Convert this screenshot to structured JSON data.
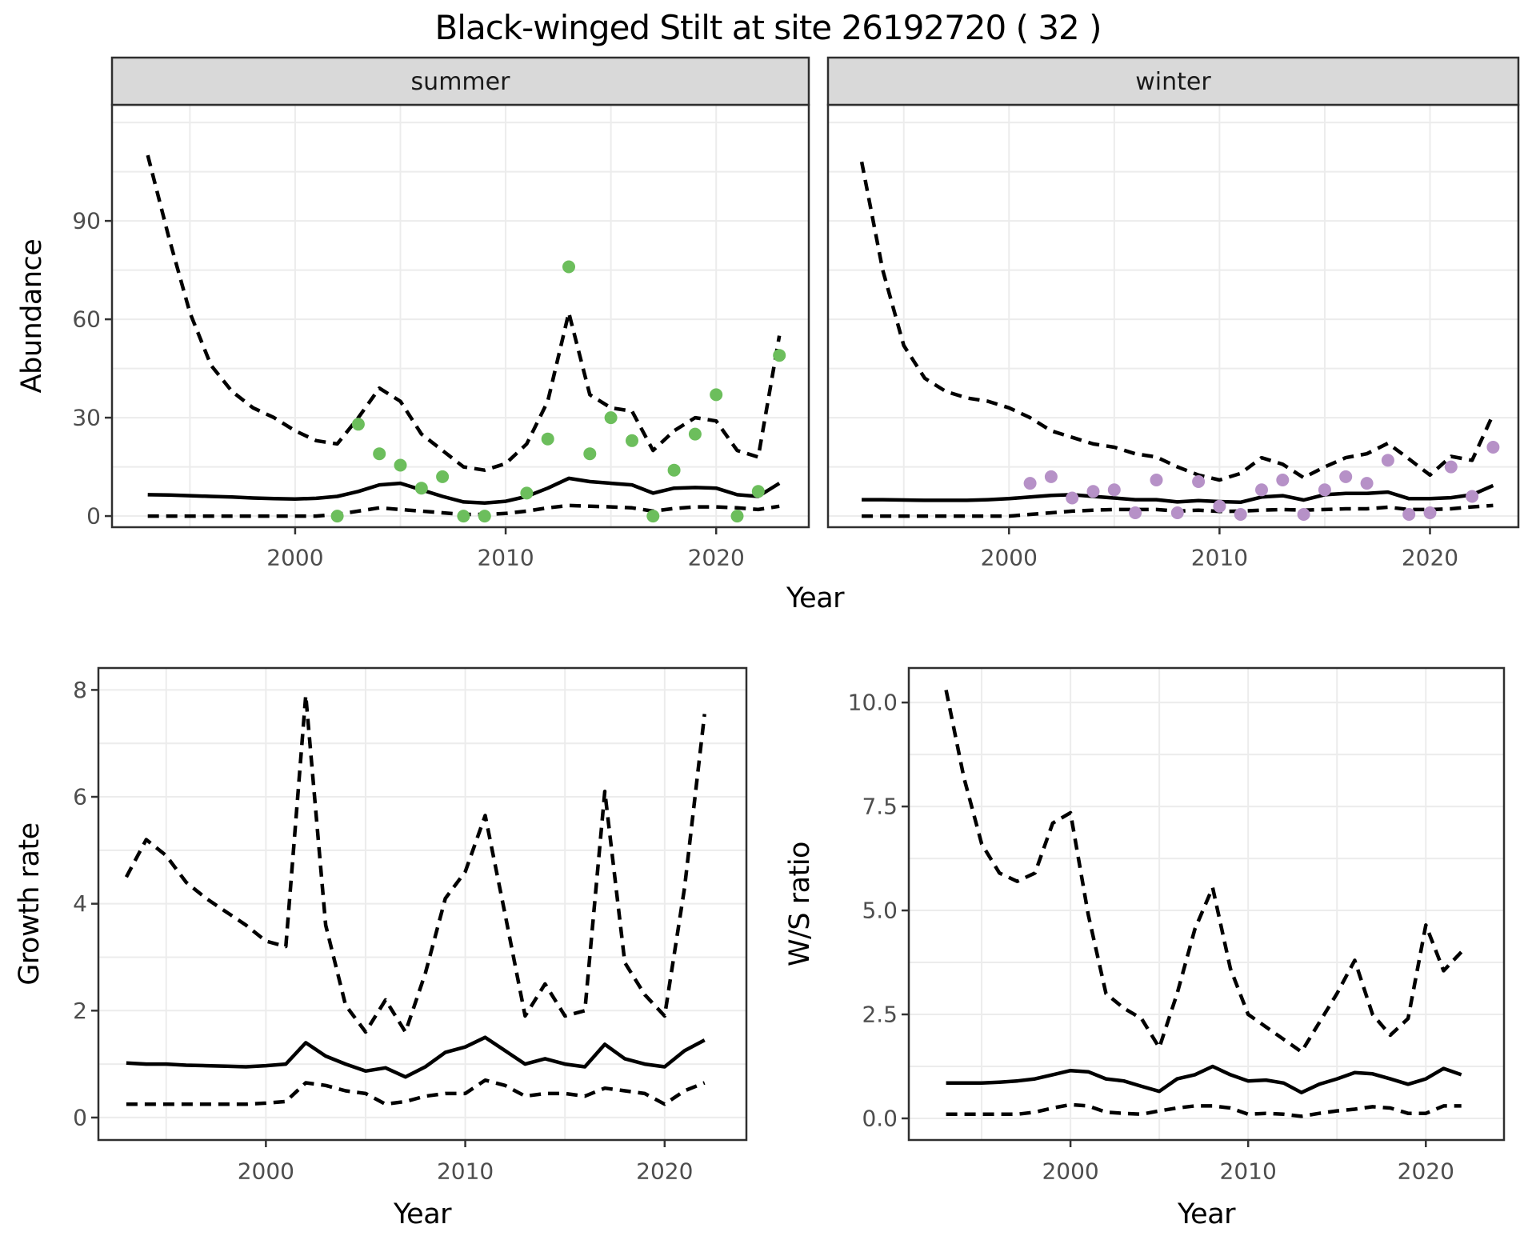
{
  "title": "Black-winged Stilt at site 26192720 ( 32 )",
  "shared_x_label": "Year",
  "colors": {
    "summer_point": "#6cbe5c",
    "winter_point": "#b691c7",
    "line": "#000000",
    "tick_label": "#4d4d4d",
    "axis_title": "#000000",
    "strip_bg": "#d9d9d9",
    "strip_text": "#1a1a1a",
    "panel_border": "#2f2f2f",
    "grid": "#ececec",
    "background": "#ffffff"
  },
  "chart_data": [
    {
      "id": "abundance-summer",
      "type": "line",
      "facet_label": "summer",
      "ylabel": "Abundance",
      "xlabel": "Year",
      "xlim": [
        1991.3,
        2024.4
      ],
      "ylim": [
        -3.4,
        125.4
      ],
      "xticks": [
        2000,
        2010,
        2020
      ],
      "xtick_labels": [
        "2000",
        "2010",
        "2020"
      ],
      "yticks": [
        0,
        30,
        60,
        90
      ],
      "ytick_labels": [
        "0",
        "30",
        "60",
        "90"
      ],
      "grid_x": [
        1995,
        2000,
        2005,
        2010,
        2015,
        2020
      ],
      "grid_y": [
        0,
        15,
        30,
        45,
        60,
        75,
        90,
        105,
        120
      ],
      "x": [
        1993,
        1994,
        1995,
        1996,
        1997,
        1998,
        1999,
        2000,
        2001,
        2002,
        2003,
        2004,
        2005,
        2006,
        2007,
        2008,
        2009,
        2010,
        2011,
        2012,
        2013,
        2014,
        2015,
        2016,
        2017,
        2018,
        2019,
        2020,
        2021,
        2022,
        2023
      ],
      "series": [
        {
          "name": "upper_ci",
          "style": "dashed",
          "values": [
            110,
            85,
            62,
            46,
            38,
            33,
            30,
            26,
            23,
            22,
            30,
            39,
            35,
            25,
            20,
            15,
            14,
            16,
            22,
            35,
            62,
            37,
            33,
            32,
            20,
            26,
            30,
            29,
            20,
            18,
            55
          ]
        },
        {
          "name": "median",
          "style": "solid",
          "values": [
            6.5,
            6.4,
            6.2,
            6.0,
            5.8,
            5.5,
            5.3,
            5.2,
            5.4,
            6.0,
            7.5,
            9.5,
            10.0,
            8.0,
            6.0,
            4.3,
            4.0,
            4.5,
            6.0,
            8.5,
            11.5,
            10.5,
            10.0,
            9.5,
            7.0,
            8.5,
            8.7,
            8.5,
            6.5,
            6.0,
            10.0
          ]
        },
        {
          "name": "lower_ci",
          "style": "dashed",
          "values": [
            0,
            0,
            0,
            0,
            0,
            0,
            0,
            0,
            0,
            0.5,
            1.5,
            2.5,
            2.0,
            1.5,
            1.0,
            0.5,
            0.5,
            0.8,
            1.5,
            2.5,
            3.2,
            3.0,
            2.8,
            2.5,
            1.5,
            2.3,
            2.8,
            2.8,
            2.5,
            2.0,
            3.0
          ]
        }
      ],
      "points": {
        "name": "observed-counts-summer",
        "color_key": "summer_point",
        "x": [
          2002,
          2003,
          2004,
          2005,
          2006,
          2007,
          2008,
          2009,
          2011,
          2012,
          2013,
          2014,
          2015,
          2016,
          2017,
          2018,
          2019,
          2020,
          2021,
          2022,
          2023
        ],
        "y": [
          0,
          28,
          19,
          15.5,
          8.5,
          12,
          0,
          0,
          7,
          23.5,
          76,
          19,
          30,
          23,
          0,
          14,
          25,
          37,
          0,
          7.5,
          49
        ]
      }
    },
    {
      "id": "abundance-winter",
      "type": "line",
      "facet_label": "winter",
      "ylabel": "Abundance",
      "xlabel": "Year",
      "xlim": [
        1991.4,
        2024.2
      ],
      "ylim": [
        -3.4,
        125.4
      ],
      "xticks": [
        2000,
        2010,
        2020
      ],
      "xtick_labels": [
        "2000",
        "2010",
        "2020"
      ],
      "yticks": [],
      "ytick_labels": [],
      "grid_x": [
        1995,
        2000,
        2005,
        2010,
        2015,
        2020
      ],
      "grid_y": [
        0,
        15,
        30,
        45,
        60,
        75,
        90,
        105,
        120
      ],
      "x": [
        1993,
        1994,
        1995,
        1996,
        1997,
        1998,
        1999,
        2000,
        2001,
        2002,
        2003,
        2004,
        2005,
        2006,
        2007,
        2008,
        2009,
        2010,
        2011,
        2012,
        2013,
        2014,
        2015,
        2016,
        2017,
        2018,
        2019,
        2020,
        2021,
        2022,
        2023
      ],
      "series": [
        {
          "name": "upper_ci",
          "style": "dashed",
          "values": [
            108,
            75,
            52,
            42,
            38,
            36,
            35,
            33,
            30,
            26,
            24,
            22,
            21,
            19,
            18,
            15,
            12.5,
            11,
            13,
            17.8,
            15.8,
            11.7,
            15,
            17.8,
            19,
            22.2,
            17.4,
            12.5,
            18.2,
            17,
            31
          ]
        },
        {
          "name": "median",
          "style": "solid",
          "values": [
            5.0,
            5.0,
            4.9,
            4.8,
            4.8,
            4.8,
            5.0,
            5.3,
            5.8,
            6.3,
            6.5,
            6.0,
            5.5,
            5.0,
            5.0,
            4.3,
            4.7,
            4.4,
            4.2,
            5.8,
            6.2,
            4.9,
            6.5,
            6.9,
            6.9,
            7.3,
            5.3,
            5.3,
            5.6,
            6.5,
            9.3
          ]
        },
        {
          "name": "lower_ci",
          "style": "dashed",
          "values": [
            0,
            0,
            0,
            0,
            0,
            0,
            0,
            0,
            0.5,
            1.0,
            1.5,
            1.8,
            2.0,
            2.0,
            2.0,
            1.5,
            1.8,
            1.4,
            1.5,
            1.8,
            2.0,
            1.8,
            2.0,
            2.2,
            2.2,
            2.7,
            2.0,
            2.0,
            2.2,
            2.8,
            3.2
          ]
        }
      ],
      "points": {
        "name": "observed-counts-winter",
        "color_key": "winter_point",
        "x": [
          2001,
          2002,
          2003,
          2004,
          2005,
          2006,
          2007,
          2008,
          2009,
          2010,
          2011,
          2012,
          2013,
          2014,
          2015,
          2016,
          2017,
          2018,
          2019,
          2020,
          2021,
          2022,
          2023
        ],
        "y": [
          10,
          12,
          5.5,
          7.5,
          8,
          1,
          11,
          1,
          10.5,
          3,
          0.5,
          8,
          11,
          0.5,
          8,
          12,
          10,
          17,
          0.5,
          1,
          15,
          6,
          21
        ]
      }
    },
    {
      "id": "growth-rate",
      "type": "line",
      "facet_label": null,
      "ylabel": "Growth rate",
      "xlabel": "Year",
      "xlim": [
        1991.6,
        2024.1
      ],
      "ylim": [
        -0.42,
        8.41
      ],
      "xticks": [
        2000,
        2010,
        2020
      ],
      "xtick_labels": [
        "2000",
        "2010",
        "2020"
      ],
      "yticks": [
        0,
        2,
        4,
        6,
        8
      ],
      "ytick_labels": [
        "0",
        "2",
        "4",
        "6",
        "8"
      ],
      "grid_x": [
        1995,
        2000,
        2005,
        2010,
        2015,
        2020
      ],
      "grid_y": [
        0,
        1,
        2,
        3,
        4,
        5,
        6,
        7,
        8
      ],
      "x": [
        1993,
        1994,
        1995,
        1996,
        1997,
        1998,
        1999,
        2000,
        2001,
        2002,
        2003,
        2004,
        2005,
        2006,
        2007,
        2008,
        2009,
        2010,
        2011,
        2012,
        2013,
        2014,
        2015,
        2016,
        2017,
        2018,
        2019,
        2020,
        2021,
        2022
      ],
      "series": [
        {
          "name": "upper_ci",
          "style": "dashed",
          "values": [
            4.5,
            5.2,
            4.9,
            4.4,
            4.1,
            3.85,
            3.6,
            3.3,
            3.2,
            7.9,
            3.6,
            2.1,
            1.6,
            2.2,
            1.6,
            2.7,
            4.1,
            4.6,
            5.65,
            3.8,
            1.9,
            2.5,
            1.9,
            2.0,
            6.1,
            2.9,
            2.3,
            1.9,
            4.3,
            7.55
          ]
        },
        {
          "name": "median",
          "style": "solid",
          "values": [
            1.02,
            1.0,
            1.0,
            0.98,
            0.97,
            0.96,
            0.95,
            0.97,
            1.0,
            1.4,
            1.15,
            1.0,
            0.87,
            0.93,
            0.76,
            0.95,
            1.22,
            1.32,
            1.5,
            1.25,
            1.0,
            1.1,
            1.0,
            0.95,
            1.37,
            1.1,
            1.0,
            0.95,
            1.25,
            1.45
          ]
        },
        {
          "name": "lower_ci",
          "style": "dashed",
          "values": [
            0.25,
            0.25,
            0.25,
            0.25,
            0.25,
            0.25,
            0.25,
            0.27,
            0.3,
            0.65,
            0.6,
            0.5,
            0.45,
            0.25,
            0.3,
            0.4,
            0.45,
            0.45,
            0.7,
            0.6,
            0.4,
            0.45,
            0.45,
            0.4,
            0.55,
            0.5,
            0.45,
            0.25,
            0.5,
            0.65
          ]
        }
      ],
      "points": null
    },
    {
      "id": "ws-ratio",
      "type": "line",
      "facet_label": null,
      "ylabel": "W/S ratio",
      "xlabel": "Year",
      "xlim": [
        1990.9,
        2024.4
      ],
      "ylim": [
        -0.52,
        10.83
      ],
      "xticks": [
        2000,
        2010,
        2020
      ],
      "xtick_labels": [
        "2000",
        "2010",
        "2020"
      ],
      "yticks": [
        0,
        2.5,
        5.0,
        7.5,
        10.0
      ],
      "ytick_labels": [
        "0.0",
        "2.5",
        "5.0",
        "7.5",
        "10.0"
      ],
      "grid_x": [
        1995,
        2000,
        2005,
        2010,
        2015,
        2020
      ],
      "grid_y": [
        0,
        1.25,
        2.5,
        3.75,
        5,
        6.25,
        7.5,
        8.75,
        10
      ],
      "x": [
        1993,
        1994,
        1995,
        1996,
        1997,
        1998,
        1999,
        2000,
        2001,
        2002,
        2003,
        2004,
        2005,
        2006,
        2007,
        2008,
        2009,
        2010,
        2011,
        2012,
        2013,
        2014,
        2015,
        2016,
        2017,
        2018,
        2019,
        2020,
        2021,
        2022
      ],
      "series": [
        {
          "name": "upper_ci",
          "style": "dashed",
          "values": [
            10.3,
            8.2,
            6.6,
            5.9,
            5.7,
            5.9,
            7.1,
            7.35,
            4.9,
            3.0,
            2.65,
            2.4,
            1.7,
            3.0,
            4.55,
            5.55,
            3.6,
            2.5,
            2.2,
            1.9,
            1.6,
            2.3,
            3.0,
            3.8,
            2.5,
            2.0,
            2.4,
            4.65,
            3.55,
            4.0
          ]
        },
        {
          "name": "median",
          "style": "solid",
          "values": [
            0.85,
            0.85,
            0.85,
            0.87,
            0.9,
            0.95,
            1.05,
            1.15,
            1.12,
            0.95,
            0.9,
            0.77,
            0.65,
            0.95,
            1.05,
            1.25,
            1.05,
            0.9,
            0.92,
            0.85,
            0.62,
            0.82,
            0.95,
            1.1,
            1.07,
            0.95,
            0.82,
            0.95,
            1.2,
            1.05
          ]
        },
        {
          "name": "lower_ci",
          "style": "dashed",
          "values": [
            0.1,
            0.1,
            0.1,
            0.1,
            0.1,
            0.15,
            0.25,
            0.33,
            0.3,
            0.15,
            0.12,
            0.1,
            0.18,
            0.25,
            0.3,
            0.3,
            0.25,
            0.1,
            0.12,
            0.1,
            0.05,
            0.12,
            0.18,
            0.22,
            0.28,
            0.25,
            0.12,
            0.12,
            0.3,
            0.3
          ]
        }
      ],
      "points": null
    }
  ]
}
